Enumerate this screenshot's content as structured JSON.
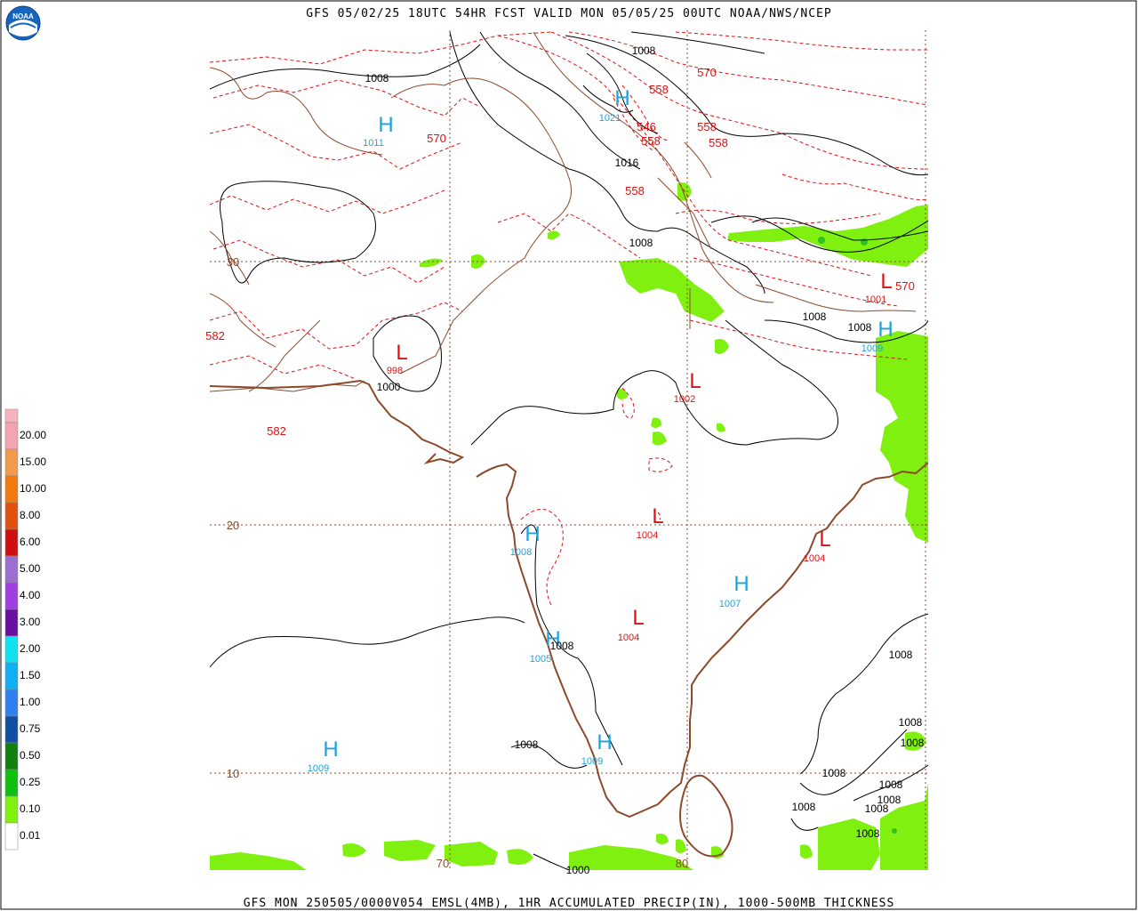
{
  "header": {
    "title": "GFS 05/02/25 18UTC 54HR FCST VALID MON 05/05/25 00UTC NOAA/NWS/NCEP"
  },
  "footer": {
    "text": "GFS MON 250505/0000V054 EMSL(4MB), 1HR ACCUMULATED PRECIP(IN), 1000-500MB THICKNESS"
  },
  "logo": {
    "name": "NOAA"
  },
  "legend": {
    "title": "1HR ACCUMULATED PRECIP(IN)",
    "labels": [
      "20.00",
      "15.00",
      "10.00",
      "8.00",
      "6.00",
      "5.00",
      "4.00",
      "3.00",
      "2.00",
      "1.50",
      "1.00",
      "0.75",
      "0.50",
      "0.25",
      "0.10",
      "0.01"
    ],
    "colors": [
      "#f7b2c1",
      "#f4a3b0",
      "#f09a50",
      "#f07a10",
      "#e05010",
      "#d01010",
      "#9a6fd0",
      "#a040e0",
      "#6a10a0",
      "#10e0f0",
      "#10b0f0",
      "#3080f0",
      "#1050a0",
      "#108010",
      "#10c010",
      "#80f010",
      "#ffffff"
    ]
  },
  "map": {
    "lat_labels": [
      "30",
      "20",
      "10"
    ],
    "lon_labels": [
      "70",
      "80"
    ],
    "pressure_centers": [
      {
        "type": "H",
        "value": "1011",
        "color": "#1aa3e0"
      },
      {
        "type": "H",
        "value": "1021",
        "color": "#1aa3e0"
      },
      {
        "type": "L",
        "value": "998",
        "color": "#e01010"
      },
      {
        "type": "L",
        "value": "1002",
        "color": "#e01010"
      },
      {
        "type": "L",
        "value": "1001",
        "color": "#e01010"
      },
      {
        "type": "H",
        "value": "1009",
        "color": "#1aa3e0"
      },
      {
        "type": "L",
        "value": "1004",
        "color": "#e01010"
      },
      {
        "type": "L",
        "value": "1004",
        "color": "#e01010"
      },
      {
        "type": "H",
        "value": "1008",
        "color": "#1aa3e0"
      },
      {
        "type": "H",
        "value": "1007",
        "color": "#1aa3e0"
      },
      {
        "type": "L",
        "value": "1004",
        "color": "#e01010"
      },
      {
        "type": "H",
        "value": "1005",
        "color": "#1aa3e0"
      },
      {
        "type": "H",
        "value": "1009",
        "color": "#1aa3e0"
      },
      {
        "type": "H",
        "value": "1009",
        "color": "#1aa3e0"
      }
    ],
    "isobar_labels": [
      "1008",
      "1008",
      "1016",
      "1008",
      "1000",
      "1008",
      "1008",
      "1008",
      "1008",
      "1008",
      "1008",
      "1008",
      "1008",
      "1008",
      "1008",
      "1008",
      "1008",
      "1008",
      "1000"
    ],
    "thickness_labels": [
      "570",
      "558",
      "546",
      "558",
      "558",
      "558",
      "558",
      "570",
      "570",
      "582",
      "582"
    ],
    "colors": {
      "isobar": "#000000",
      "thickness": "#e01010",
      "border": "#8b4a2b",
      "grid": "#8b4a2b",
      "precip": "#80f010"
    }
  }
}
